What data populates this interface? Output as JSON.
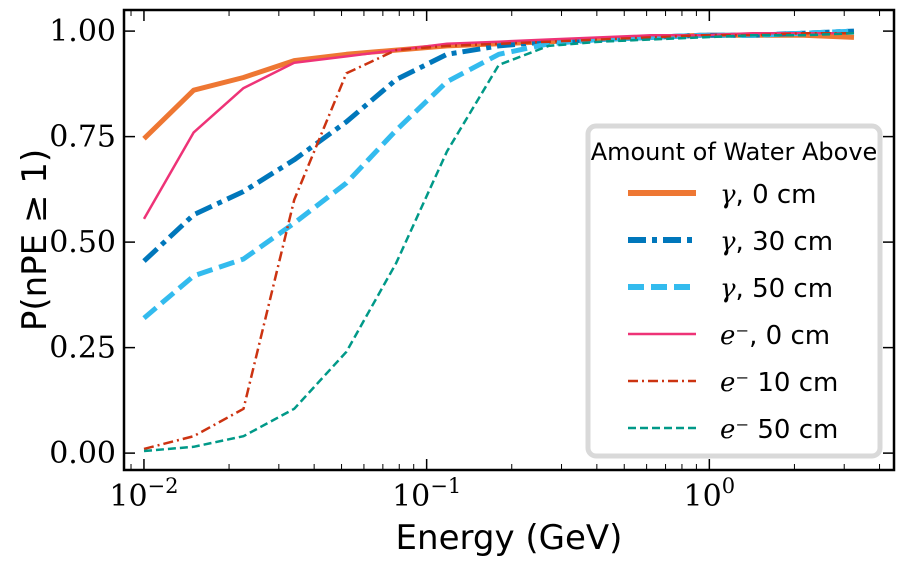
{
  "chart_data": {
    "type": "line",
    "xlabel": "Energy (GeV)",
    "ylabel": "P(nPE ≥ 1)",
    "xscale": "log",
    "xlim": [
      0.0085,
      4.5
    ],
    "ylim": [
      -0.04,
      1.05
    ],
    "grid": false,
    "x_ticks": [
      {
        "value": 0.01,
        "base": "10",
        "exp": "−2"
      },
      {
        "value": 0.1,
        "base": "10",
        "exp": "−1"
      },
      {
        "value": 1,
        "base": "10",
        "exp": "0"
      }
    ],
    "y_ticks": [
      {
        "value": 0.0,
        "label": "0.00"
      },
      {
        "value": 0.25,
        "label": "0.25"
      },
      {
        "value": 0.5,
        "label": "0.50"
      },
      {
        "value": 0.75,
        "label": "0.75"
      },
      {
        "value": 1.0,
        "label": "1.00"
      }
    ],
    "legend": {
      "title": "Amount of Water Above",
      "position": "right"
    },
    "series": [
      {
        "name": "γ, 0 cm",
        "symbol": "γ",
        "label_rest": ", 0 cm",
        "color": "#EE7733",
        "style": "solid",
        "width": "thick",
        "x": [
          0.01,
          0.015,
          0.0225,
          0.034,
          0.052,
          0.078,
          0.118,
          0.18,
          0.27,
          0.41,
          0.62,
          0.94,
          1.42,
          2.15,
          3.25
        ],
        "values": [
          0.745,
          0.86,
          0.89,
          0.93,
          0.945,
          0.955,
          0.965,
          0.97,
          0.975,
          0.98,
          0.985,
          0.99,
          0.99,
          0.99,
          0.985
        ]
      },
      {
        "name": "γ, 30 cm",
        "symbol": "γ",
        "label_rest": ", 30 cm",
        "color": "#0077BB",
        "style": "dashdot",
        "width": "thick",
        "x": [
          0.01,
          0.015,
          0.0225,
          0.034,
          0.052,
          0.078,
          0.118,
          0.18,
          0.27,
          0.41,
          0.62,
          0.94,
          1.42,
          2.15,
          3.25
        ],
        "values": [
          0.455,
          0.565,
          0.62,
          0.695,
          0.785,
          0.885,
          0.945,
          0.965,
          0.975,
          0.98,
          0.985,
          0.99,
          0.99,
          0.995,
          1.0
        ]
      },
      {
        "name": "γ, 50 cm",
        "symbol": "γ",
        "label_rest": ", 50 cm",
        "color": "#33BBEE",
        "style": "dashed",
        "width": "thick",
        "x": [
          0.01,
          0.015,
          0.0225,
          0.034,
          0.052,
          0.078,
          0.118,
          0.18,
          0.27,
          0.41,
          0.62,
          0.94,
          1.42,
          2.15,
          3.25
        ],
        "values": [
          0.32,
          0.42,
          0.46,
          0.545,
          0.64,
          0.765,
          0.88,
          0.945,
          0.97,
          0.98,
          0.985,
          0.99,
          0.99,
          0.995,
          1.0
        ]
      },
      {
        "name": "e⁻, 0 cm",
        "symbol": "e⁻",
        "label_rest": ", 0 cm",
        "color": "#EE3377",
        "style": "solid",
        "width": "thin",
        "x": [
          0.01,
          0.015,
          0.0225,
          0.034,
          0.052,
          0.078,
          0.118,
          0.18,
          0.27,
          0.41,
          0.62,
          0.94,
          1.42,
          2.15,
          3.25
        ],
        "values": [
          0.555,
          0.76,
          0.865,
          0.925,
          0.94,
          0.955,
          0.97,
          0.975,
          0.98,
          0.985,
          0.99,
          0.99,
          0.995,
          0.995,
          0.995
        ]
      },
      {
        "name": "e⁻ 10 cm",
        "symbol": "e⁻",
        "label_rest": " 10 cm",
        "color": "#CC3311",
        "style": "dashdot",
        "width": "thin",
        "x": [
          0.01,
          0.015,
          0.0225,
          0.034,
          0.052,
          0.078,
          0.118,
          0.18,
          0.27,
          0.41,
          0.62,
          0.94,
          1.42,
          2.15,
          3.25
        ],
        "values": [
          0.01,
          0.04,
          0.105,
          0.6,
          0.9,
          0.955,
          0.965,
          0.97,
          0.975,
          0.98,
          0.985,
          0.99,
          0.99,
          0.995,
          0.995
        ]
      },
      {
        "name": "e⁻ 50 cm",
        "symbol": "e⁻",
        "label_rest": " 50 cm",
        "color": "#009988",
        "style": "dashed",
        "width": "thin",
        "x": [
          0.01,
          0.015,
          0.0225,
          0.034,
          0.052,
          0.078,
          0.118,
          0.18,
          0.27,
          0.41,
          0.62,
          0.94,
          1.42,
          2.15,
          3.25
        ],
        "values": [
          0.005,
          0.015,
          0.04,
          0.105,
          0.24,
          0.45,
          0.715,
          0.92,
          0.965,
          0.975,
          0.98,
          0.985,
          0.99,
          0.99,
          0.995
        ]
      }
    ]
  }
}
